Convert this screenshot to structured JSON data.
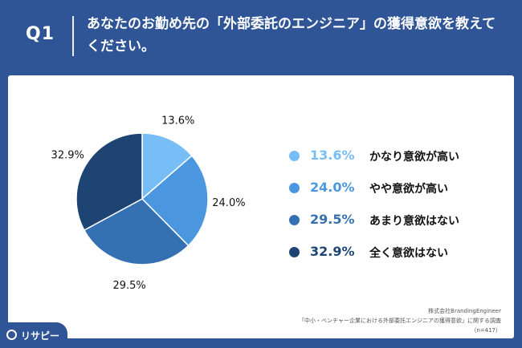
{
  "header": {
    "qnum": "Q1",
    "title": "あなたのお勤め先の「外部委託のエンジニア」の獲得意欲を教えてください。"
  },
  "chart_data": {
    "type": "pie",
    "slices": [
      {
        "label": "かなり意欲が高い",
        "value": 13.6,
        "display": "13.6%",
        "color": "#77bdf7"
      },
      {
        "label": "やや意欲が高い",
        "value": 24.0,
        "display": "24.0%",
        "color": "#4a97e0"
      },
      {
        "label": "あまり意欲はない",
        "value": 29.5,
        "display": "29.5%",
        "color": "#3571b2"
      },
      {
        "label": "全く意欲はない",
        "value": 32.9,
        "display": "32.9%",
        "color": "#1e4474"
      }
    ]
  },
  "footer": {
    "line1": "株式会社BrandingEngineer",
    "line2": "「中小・ベンチャー企業における外部委託エンジニアの獲得意欲」に関する調査",
    "line3": "（n=417）"
  },
  "logo": {
    "text": "リサピー"
  }
}
